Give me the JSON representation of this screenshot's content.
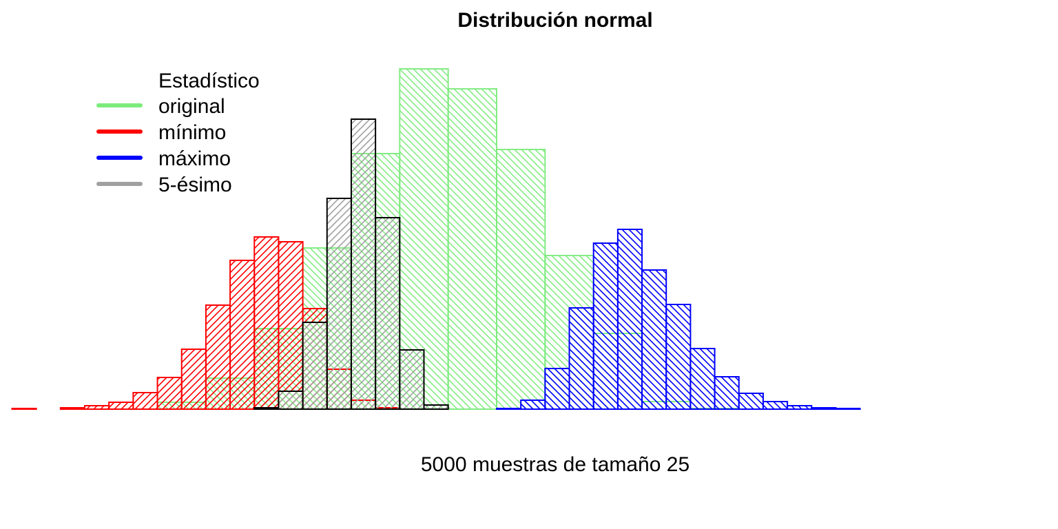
{
  "chart_data": {
    "type": "bar",
    "title": "Distribución normal",
    "xlabel": "5000 muestras de tamaño 25",
    "ylabel": "",
    "legend": {
      "title": "Estadístico",
      "position": "top-left",
      "items": [
        {
          "label": "original",
          "color": "#7CEB7C"
        },
        {
          "label": "mínimo",
          "color": "#FF0000"
        },
        {
          "label": "máximo",
          "color": "#0000FF"
        },
        {
          "label": "5-ésimo",
          "color": "#A0A0A0"
        }
      ]
    },
    "axes_visible": false,
    "grid": false,
    "ylim": [
      0,
      500
    ],
    "series": [
      {
        "name": "original",
        "color": "#7CEB7C",
        "hatch": "diagonal-down",
        "bin_width": 1,
        "bins": [
          [
            -6,
            -5,
            0
          ],
          [
            -5,
            -4,
            0
          ],
          [
            -4,
            -3,
            10
          ],
          [
            -3,
            -2,
            45
          ],
          [
            -2,
            -1,
            117
          ],
          [
            -1,
            0,
            234
          ],
          [
            0,
            1,
            371
          ],
          [
            1,
            2,
            494
          ],
          [
            2,
            3,
            465
          ],
          [
            3,
            4,
            377
          ],
          [
            4,
            5,
            223
          ],
          [
            5,
            6,
            110
          ],
          [
            6,
            7,
            11
          ],
          [
            7,
            8,
            1
          ]
        ]
      },
      {
        "name": "mínimo",
        "color": "#FF0000",
        "hatch": "diagonal-up",
        "bin_width": 0.5,
        "bins": [
          [
            -7,
            -6.5,
            1
          ],
          [
            -6.5,
            -6,
            0
          ],
          [
            -6,
            -5.5,
            2
          ],
          [
            -5.5,
            -5,
            5
          ],
          [
            -5,
            -4.5,
            10
          ],
          [
            -4.5,
            -4,
            24
          ],
          [
            -4,
            -3.5,
            46
          ],
          [
            -3.5,
            -3,
            87
          ],
          [
            -3,
            -2.5,
            151
          ],
          [
            -2.5,
            -2,
            216
          ],
          [
            -2,
            -1.5,
            250
          ],
          [
            -1.5,
            -1,
            243
          ],
          [
            -1,
            -0.5,
            146
          ],
          [
            -0.5,
            0,
            58
          ],
          [
            0,
            0.5,
            13
          ],
          [
            0.5,
            1,
            2
          ]
        ]
      },
      {
        "name": "máximo",
        "color": "#0000FF",
        "hatch": "diagonal-down",
        "bin_width": 0.5,
        "bins": [
          [
            3,
            3.5,
            1
          ],
          [
            3.5,
            4,
            13
          ],
          [
            4,
            4.5,
            59
          ],
          [
            4.5,
            5,
            147
          ],
          [
            5,
            5.5,
            241
          ],
          [
            5.5,
            6,
            261
          ],
          [
            6,
            6.5,
            202
          ],
          [
            6.5,
            7,
            152
          ],
          [
            7,
            7.5,
            88
          ],
          [
            7.5,
            8,
            47
          ],
          [
            8,
            8.5,
            23
          ],
          [
            8.5,
            9,
            11
          ],
          [
            9,
            9.5,
            5
          ],
          [
            9.5,
            10,
            2
          ],
          [
            10,
            10.5,
            1
          ],
          [
            10.5,
            11,
            0
          ],
          [
            11,
            11.5,
            0
          ],
          [
            11.5,
            12,
            0
          ]
        ]
      },
      {
        "name": "5-ésimo",
        "color": "#000000",
        "fill": "#A0A0A0",
        "hatch": "diagonal-up",
        "bin_width": 0.5,
        "bins": [
          [
            -2.5,
            -2,
            0
          ],
          [
            -2,
            -1.5,
            2
          ],
          [
            -1.5,
            -1,
            26
          ],
          [
            -1,
            -0.5,
            126
          ],
          [
            -0.5,
            0,
            306
          ],
          [
            0,
            0.5,
            421
          ],
          [
            0.5,
            1,
            278
          ],
          [
            1,
            1.5,
            86
          ],
          [
            1.5,
            2,
            6
          ],
          [
            2,
            2.5,
            0
          ]
        ]
      }
    ]
  }
}
